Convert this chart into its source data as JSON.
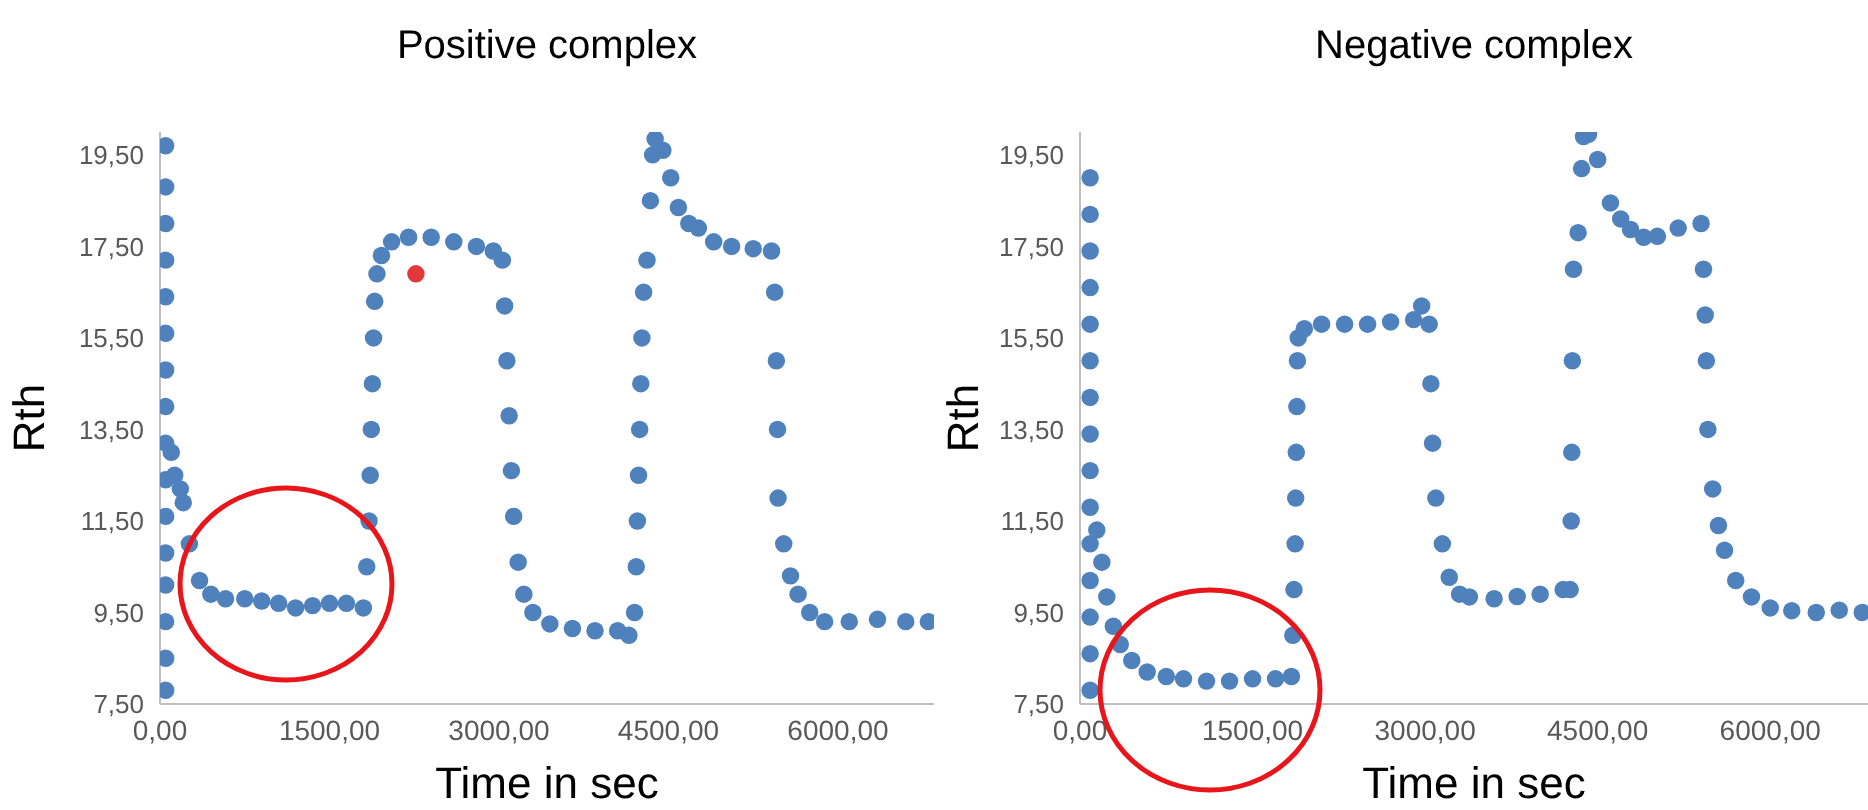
{
  "chart_data": [
    {
      "type": "scatter",
      "title": "Positive complex",
      "xlabel": "Time in sec",
      "ylabel": "Rth",
      "marker": "circle",
      "xlim": [
        0,
        6850
      ],
      "ylim": [
        7.5,
        20
      ],
      "xticks": [
        {
          "value": 0,
          "label": "0,00"
        },
        {
          "value": 1500,
          "label": "1500,00"
        },
        {
          "value": 3000,
          "label": "3000,00"
        },
        {
          "value": 4500,
          "label": "4500,00"
        },
        {
          "value": 6000,
          "label": "6000,00"
        }
      ],
      "yticks": [
        {
          "value": 7.5,
          "label": "7,50"
        },
        {
          "value": 9.5,
          "label": "9,50"
        },
        {
          "value": 11.5,
          "label": "11,50"
        },
        {
          "value": 13.5,
          "label": "13,50"
        },
        {
          "value": 15.5,
          "label": "15,50"
        },
        {
          "value": 17.5,
          "label": "17,50"
        },
        {
          "value": 19.5,
          "label": "19,50"
        }
      ],
      "series": [
        {
          "color": "#4f81bd",
          "x": [
            50,
            50,
            50,
            50,
            50,
            50,
            50,
            50,
            50,
            50,
            50,
            50,
            50,
            50,
            50,
            50,
            100,
            130,
            180,
            206,
            260,
            350,
            450,
            580,
            750,
            900,
            1050,
            1200,
            1350,
            1500,
            1650,
            1800,
            1830,
            1850,
            1860,
            1870,
            1880,
            1890,
            1900,
            1920,
            1960,
            2050,
            2200,
            2400,
            2600,
            2800,
            2950,
            3030,
            3050,
            3070,
            3090,
            3110,
            3130,
            3170,
            3220,
            3300,
            3450,
            3650,
            3850,
            4050,
            4150,
            4200,
            4215,
            4225,
            4235,
            4245,
            4255,
            4265,
            4280,
            4310,
            4340,
            4360,
            4382,
            4450,
            4520,
            4588,
            4680,
            4765,
            4900,
            5059,
            5250,
            5412,
            5440,
            5455,
            5465,
            5470,
            5520,
            5580,
            5647,
            5750,
            5882,
            6100,
            6350,
            6600,
            6800
          ],
          "values": [
            7.8,
            8.5,
            9.3,
            10.1,
            10.8,
            11.6,
            12.4,
            13.2,
            14.0,
            14.8,
            15.6,
            16.4,
            17.2,
            18.0,
            18.8,
            19.7,
            13.0,
            12.5,
            12.2,
            11.9,
            11.0,
            10.2,
            9.9,
            9.8,
            9.8,
            9.75,
            9.7,
            9.6,
            9.65,
            9.7,
            9.7,
            9.6,
            10.5,
            11.5,
            12.5,
            13.5,
            14.5,
            15.5,
            16.3,
            16.9,
            17.3,
            17.6,
            17.7,
            17.7,
            17.6,
            17.5,
            17.4,
            17.2,
            16.2,
            15.0,
            13.8,
            12.6,
            11.6,
            10.6,
            9.9,
            9.5,
            9.25,
            9.15,
            9.1,
            9.1,
            9.0,
            9.5,
            10.5,
            11.5,
            12.5,
            13.5,
            14.5,
            15.5,
            16.5,
            17.2,
            18.5,
            19.5,
            19.85,
            19.6,
            19.0,
            18.35,
            18.0,
            17.9,
            17.6,
            17.5,
            17.45,
            17.4,
            16.5,
            15.0,
            13.5,
            12.0,
            11.0,
            10.3,
            9.9,
            9.5,
            9.3,
            9.3,
            9.35,
            9.3,
            9.3
          ]
        },
        {
          "color": "#e0383b",
          "x": [
            2265
          ],
          "values": [
            16.9
          ]
        }
      ]
    },
    {
      "type": "scatter",
      "title": "Negative complex",
      "xlabel": "Time in sec",
      "ylabel": "Rth",
      "marker": "circle",
      "xlim": [
        0,
        6850
      ],
      "ylim": [
        7.5,
        20
      ],
      "xticks": [
        {
          "value": 0,
          "label": "0,00"
        },
        {
          "value": 1500,
          "label": "1500,00"
        },
        {
          "value": 3000,
          "label": "3000,00"
        },
        {
          "value": 4500,
          "label": "4500,00"
        },
        {
          "value": 6000,
          "label": "6000,00"
        }
      ],
      "yticks": [
        {
          "value": 7.5,
          "label": "7,50"
        },
        {
          "value": 9.5,
          "label": "9,50"
        },
        {
          "value": 11.5,
          "label": "11,50"
        },
        {
          "value": 13.5,
          "label": "13,50"
        },
        {
          "value": 15.5,
          "label": "15,50"
        },
        {
          "value": 17.5,
          "label": "17,50"
        },
        {
          "value": 19.5,
          "label": "19,50"
        }
      ],
      "series": [
        {
          "color": "#4f81bd",
          "x": [
            88,
            88,
            88,
            88,
            88,
            88,
            88,
            88,
            88,
            88,
            88,
            88,
            88,
            88,
            88,
            146,
            190,
            233,
            290,
            350,
            450,
            584,
            750,
            900,
            1100,
            1300,
            1500,
            1700,
            1838,
            1850,
            1860,
            1870,
            1875,
            1880,
            1885,
            1890,
            1897,
            1950,
            2100,
            2300,
            2500,
            2700,
            2900,
            2970,
            3035,
            3050,
            3065,
            3093,
            3150,
            3210,
            3300,
            3385,
            3600,
            3800,
            4000,
            4200,
            4261,
            4270,
            4275,
            4280,
            4290,
            4330,
            4360,
            4377,
            4420,
            4500,
            4611,
            4700,
            4786,
            4900,
            5019,
            5200,
            5399,
            5420,
            5435,
            5445,
            5458,
            5500,
            5550,
            5603,
            5700,
            5837,
            6000,
            6187,
            6400,
            6600,
            6800
          ],
          "values": [
            7.8,
            8.6,
            9.4,
            10.2,
            11.0,
            11.8,
            12.6,
            13.4,
            14.2,
            15.0,
            15.8,
            16.6,
            17.4,
            18.2,
            19.0,
            11.3,
            10.6,
            9.84,
            9.2,
            8.8,
            8.45,
            8.2,
            8.1,
            8.05,
            8.0,
            8.0,
            8.05,
            8.05,
            8.1,
            9.0,
            10.0,
            11.0,
            12.0,
            13.0,
            14.0,
            15.0,
            15.5,
            15.7,
            15.8,
            15.8,
            15.8,
            15.85,
            15.9,
            16.2,
            15.8,
            14.5,
            13.2,
            12.0,
            11.0,
            10.27,
            9.9,
            9.84,
            9.8,
            9.85,
            9.9,
            10.0,
            10.0,
            11.5,
            13.0,
            15.0,
            17.0,
            17.8,
            19.2,
            19.9,
            19.95,
            19.4,
            18.45,
            18.1,
            17.87,
            17.7,
            17.72,
            17.9,
            18.0,
            17.0,
            16.0,
            15.0,
            13.5,
            12.2,
            11.4,
            10.86,
            10.2,
            9.84,
            9.6,
            9.54,
            9.5,
            9.55,
            9.5
          ]
        }
      ]
    }
  ]
}
